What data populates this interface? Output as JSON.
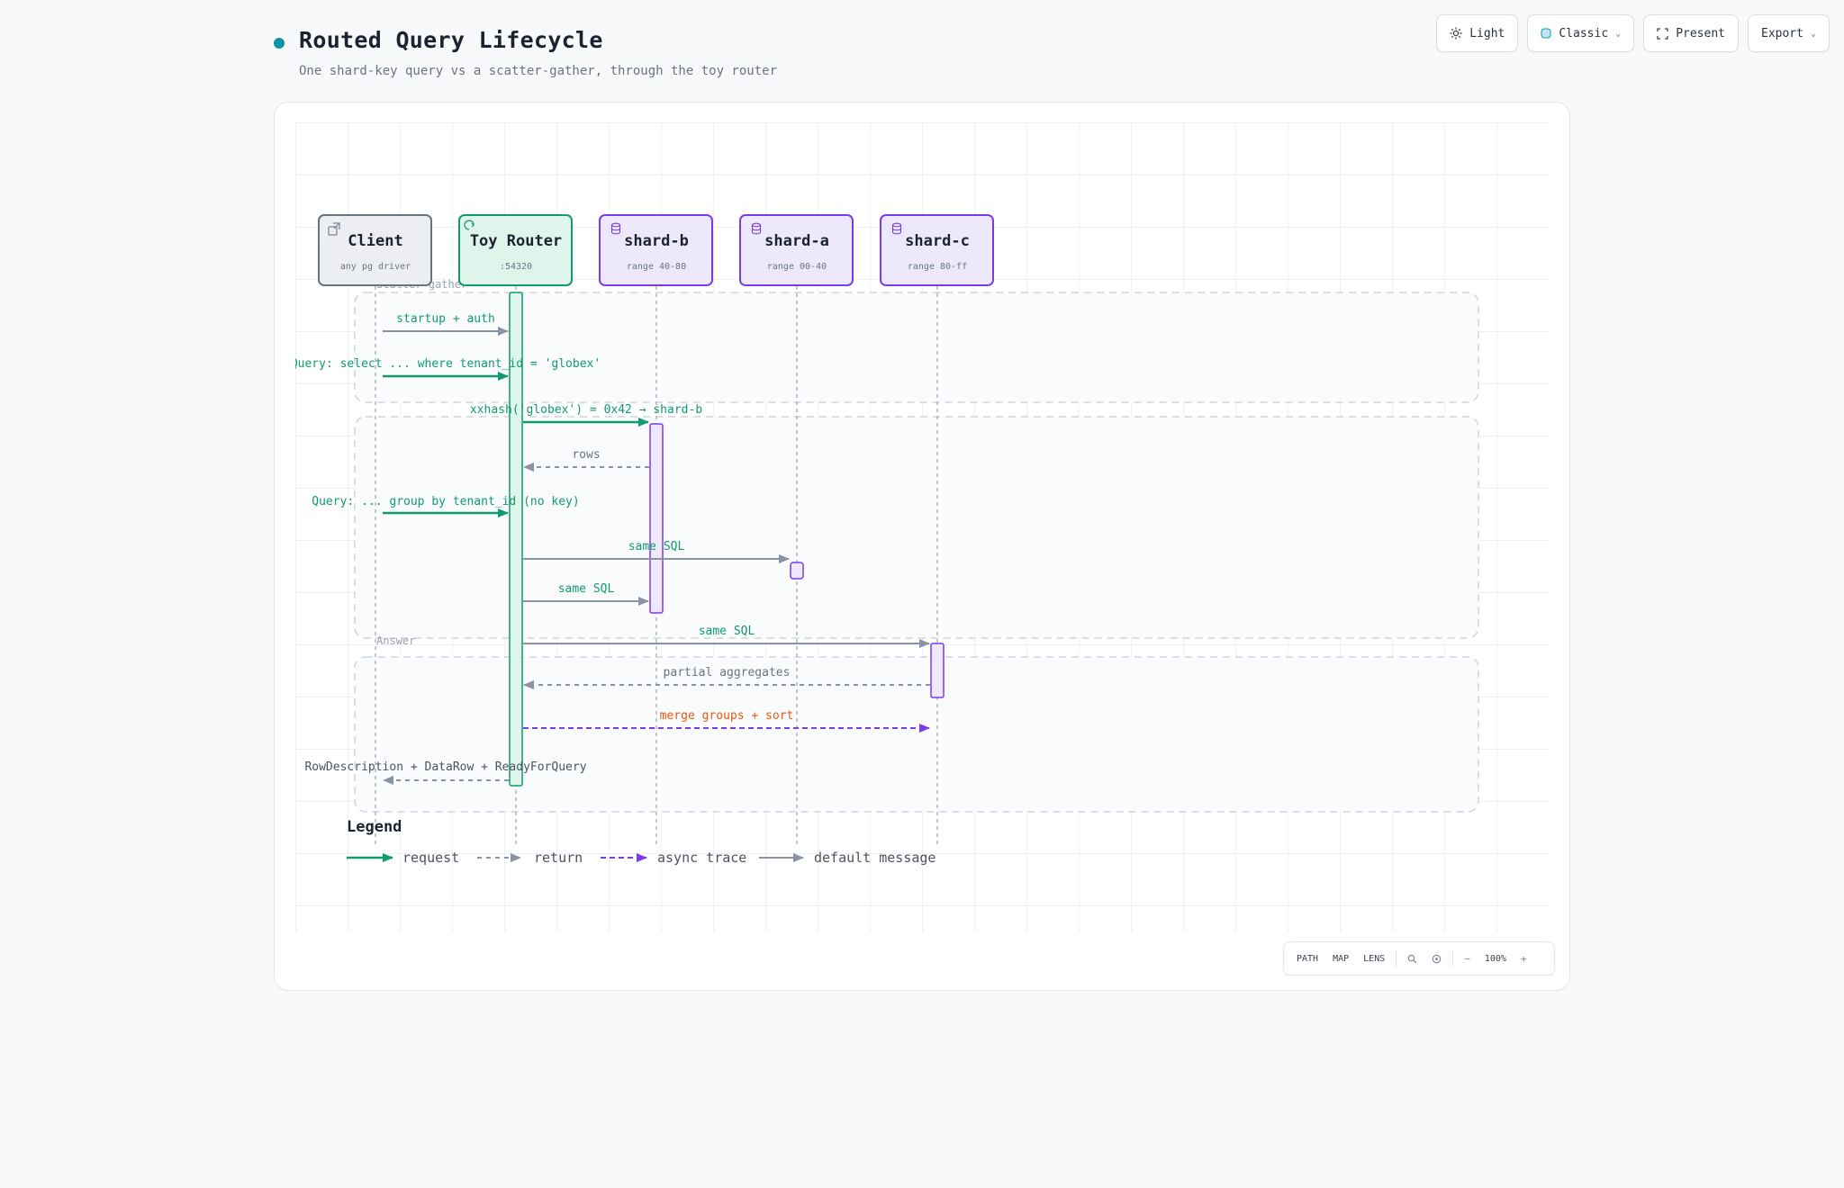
{
  "header": {
    "title": "Routed Query Lifecycle",
    "subtitle": "One shard-key query vs a scatter-gather, through the toy router"
  },
  "toolbar": {
    "theme_label": "Light",
    "style_label": "Classic",
    "present_label": "Present",
    "export_label": "Export"
  },
  "diagram": {
    "participants": [
      {
        "id": "client",
        "name": "Client",
        "sub": "any pg driver",
        "icon": "external-link-icon"
      },
      {
        "id": "router",
        "name": "Toy Router",
        "sub": ":54320",
        "icon": "routing-icon"
      },
      {
        "id": "shard-b",
        "name": "shard-b",
        "sub": "range 40-80",
        "icon": "database-icon"
      },
      {
        "id": "shard-a",
        "name": "shard-a",
        "sub": "range 00-40",
        "icon": "database-icon"
      },
      {
        "id": "shard-c",
        "name": "shard-c",
        "sub": "range 80-ff",
        "icon": "database-icon"
      }
    ],
    "groups": [
      {
        "id": "g1",
        "label": "Scatter-gather"
      },
      {
        "id": "g2",
        "label": ""
      },
      {
        "id": "g3",
        "label": "Answer"
      }
    ],
    "messages": [
      {
        "id": "m1",
        "from": "client",
        "to": "router",
        "label": "startup + auth",
        "kind": "default"
      },
      {
        "id": "m2",
        "from": "client",
        "to": "router",
        "label": "Query: select ... where tenant_id = 'globex'",
        "kind": "request"
      },
      {
        "id": "m3",
        "from": "router",
        "to": "shard-b",
        "label": "xxhash('globex') = 0x42 → shard-b",
        "kind": "request"
      },
      {
        "id": "m4",
        "from": "shard-b",
        "to": "router",
        "label": "rows",
        "kind": "return"
      },
      {
        "id": "m5",
        "from": "client",
        "to": "router",
        "label": "Query: ... group by tenant_id (no key)",
        "kind": "request"
      },
      {
        "id": "m6",
        "from": "router",
        "to": "shard-a",
        "label": "same SQL",
        "kind": "default"
      },
      {
        "id": "m7",
        "from": "router",
        "to": "shard-b",
        "label": "same SQL",
        "kind": "default"
      },
      {
        "id": "m8",
        "from": "router",
        "to": "shard-c",
        "label": "same SQL",
        "kind": "default"
      },
      {
        "id": "m9",
        "from": "shard-c",
        "to": "router",
        "label": "partial aggregates",
        "kind": "return"
      },
      {
        "id": "m10",
        "from": "router",
        "to": "shard-c",
        "label": "merge groups + sort",
        "kind": "async"
      },
      {
        "id": "m11",
        "from": "router",
        "to": "client",
        "label": "RowDescription + DataRow + ReadyForQuery",
        "kind": "return"
      }
    ],
    "legend": {
      "title": "Legend",
      "items": [
        {
          "kind": "request",
          "label": "request"
        },
        {
          "kind": "return",
          "label": "return"
        },
        {
          "kind": "async",
          "label": "async trace"
        },
        {
          "kind": "default",
          "label": "default message"
        }
      ]
    },
    "colors": {
      "request": "#0f9b6e",
      "return": "#8a93a3",
      "async": "#7c3aed",
      "default": "#8a93a3",
      "async_label": "#ea580c",
      "router_fill": "#dff5ec",
      "router_stroke": "#0f9b6e",
      "shard_fill": "#ede9fb",
      "shard_stroke": "#7c3aed",
      "client_fill": "#eceef2",
      "client_stroke": "#6b7280"
    }
  },
  "zoombar": {
    "path_label": "PATH",
    "map_label": "MAP",
    "lens_label": "LENS",
    "zoom_level": "100%",
    "zoom_out_label": "−",
    "zoom_in_label": "+"
  }
}
